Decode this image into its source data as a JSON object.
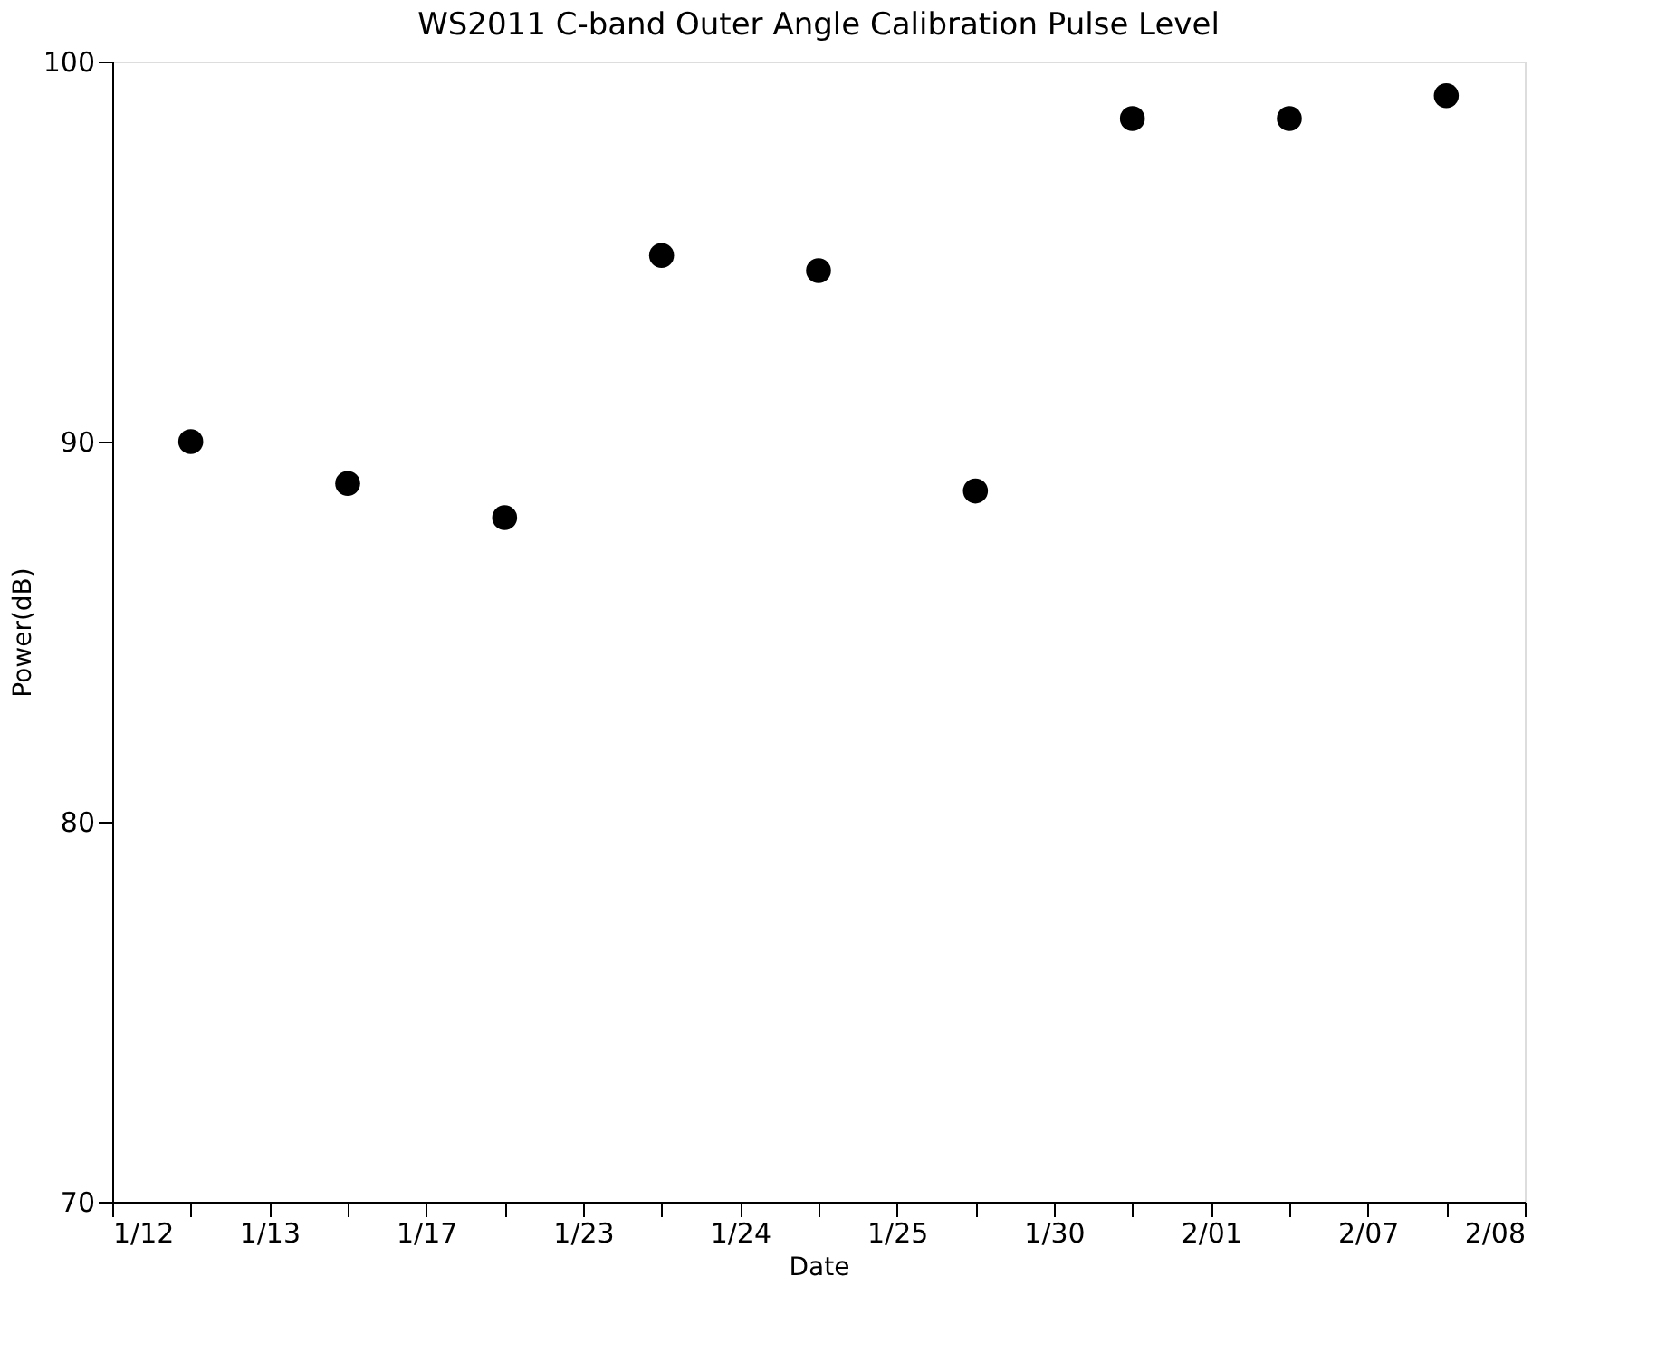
{
  "chart_data": {
    "type": "scatter",
    "title": "WS2011 C-band Outer Angle Calibration Pulse Level",
    "xlabel": "Date",
    "ylabel": "Power(dB)",
    "categories": [
      "1/12",
      null,
      "1/13",
      null,
      "1/17",
      null,
      "1/23",
      null,
      "1/24",
      null,
      "1/25",
      null,
      "1/30",
      null,
      "2/01",
      null,
      "2/07",
      null,
      "2/08"
    ],
    "series": [
      {
        "color": "#000000",
        "values": [
          null,
          90.0,
          null,
          88.9,
          null,
          88.0,
          null,
          94.9,
          null,
          94.5,
          null,
          88.7,
          null,
          98.5,
          null,
          98.5,
          null,
          99.1,
          null
        ]
      }
    ],
    "ylim": [
      70,
      100
    ],
    "yticks": [
      70,
      80,
      90,
      100
    ],
    "marker": "circle",
    "grid": false
  }
}
